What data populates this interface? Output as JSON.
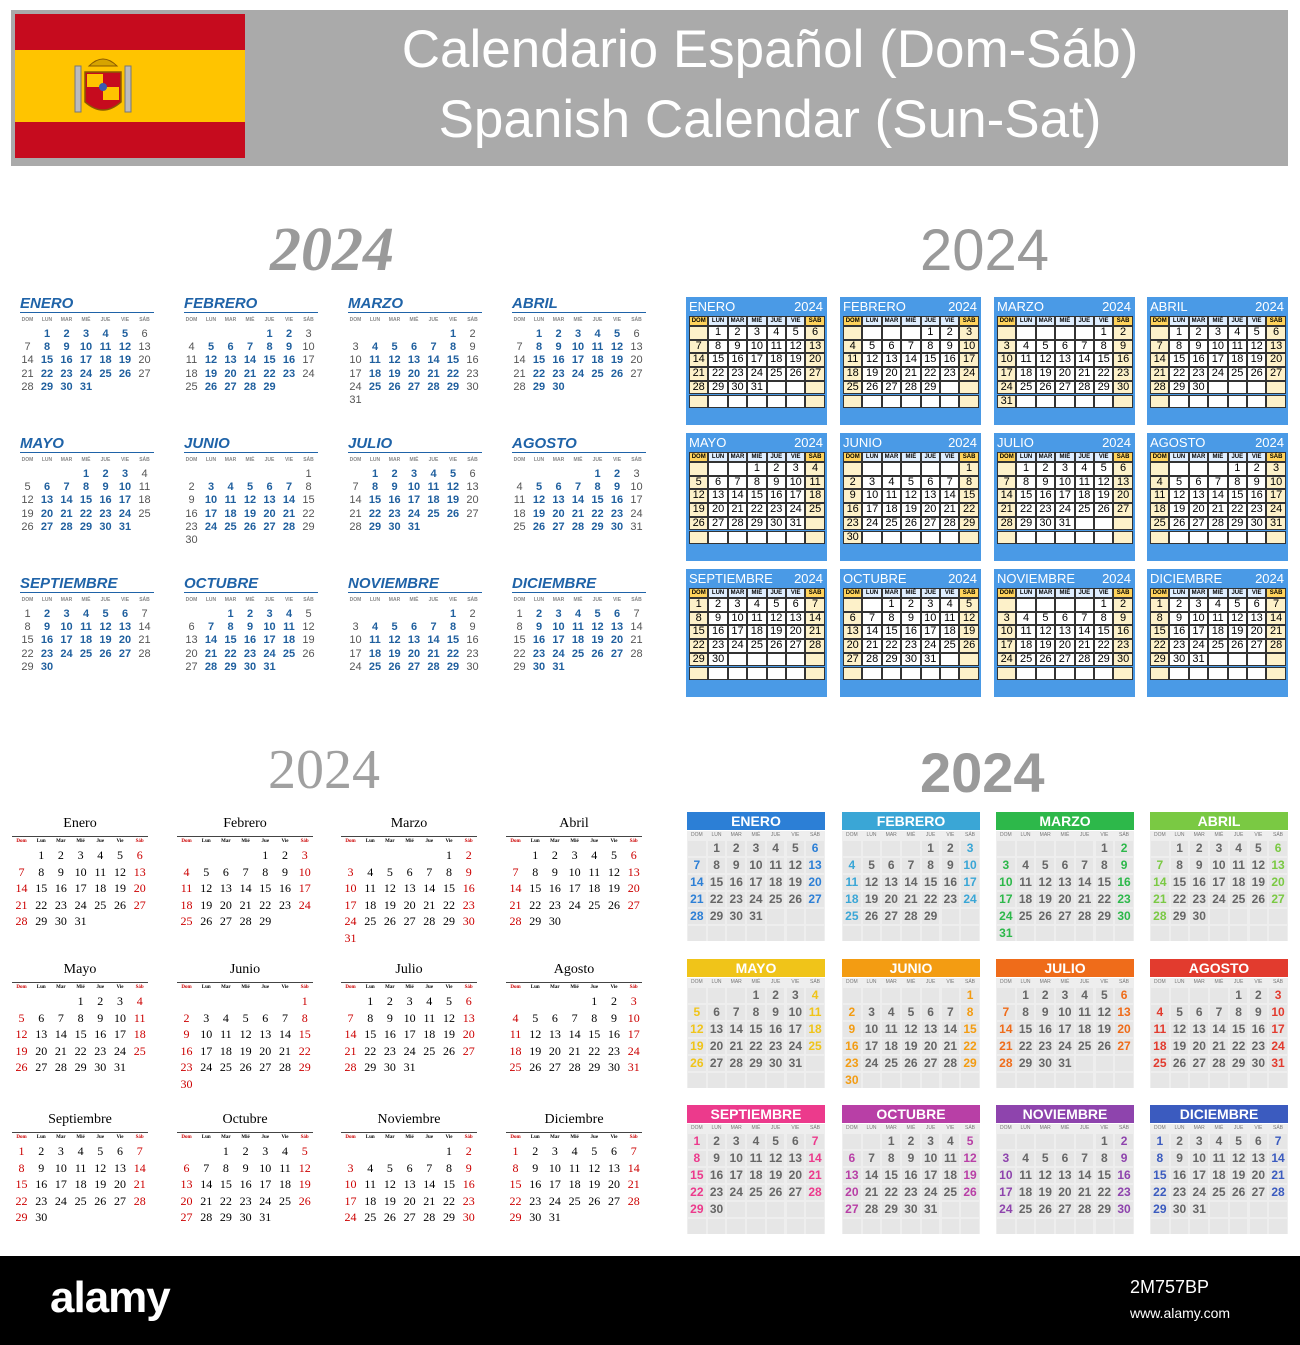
{
  "header": {
    "title_es": "Calendario Español (Dom-Sáb)",
    "title_en": "Spanish Calendar (Sun-Sat)",
    "flag_colors": {
      "red": "#c60b1e",
      "yellow": "#ffc400"
    }
  },
  "year": "2024",
  "months_upper": [
    "ENERO",
    "FEBRERO",
    "MARZO",
    "ABRIL",
    "MAYO",
    "JUNIO",
    "JULIO",
    "AGOSTO",
    "SEPTIEMBRE",
    "OCTUBRE",
    "NOVIEMBRE",
    "DICIEMBRE"
  ],
  "months_title": [
    "Enero",
    "Febrero",
    "Marzo",
    "Abril",
    "Mayo",
    "Junio",
    "Julio",
    "Agosto",
    "Septiembre",
    "Octubre",
    "Noviembre",
    "Diciembre"
  ],
  "weekdays_upper": [
    "DOM",
    "LUN",
    "MAR",
    "MIÉ",
    "JUE",
    "VIE",
    "SÁB"
  ],
  "weekdays_title": [
    "Dom",
    "Lun",
    "Mar",
    "Mié",
    "Jue",
    "Vie",
    "Sáb"
  ],
  "month_start_dow": [
    1,
    4,
    5,
    1,
    3,
    6,
    1,
    4,
    0,
    2,
    5,
    0
  ],
  "month_days": [
    31,
    29,
    31,
    30,
    31,
    30,
    31,
    31,
    30,
    31,
    30,
    31
  ],
  "style4_colors": [
    "#2c7fd6",
    "#3aa6d6",
    "#2db84a",
    "#7ac943",
    "#f0c419",
    "#f39c12",
    "#ef6c1a",
    "#e23b2e",
    "#ec3a8c",
    "#b83fa6",
    "#8e44ad",
    "#3b5bbf"
  ],
  "watermark": {
    "logo": "alamy",
    "image_id": "2M757BP",
    "url": "www.alamy.com"
  }
}
